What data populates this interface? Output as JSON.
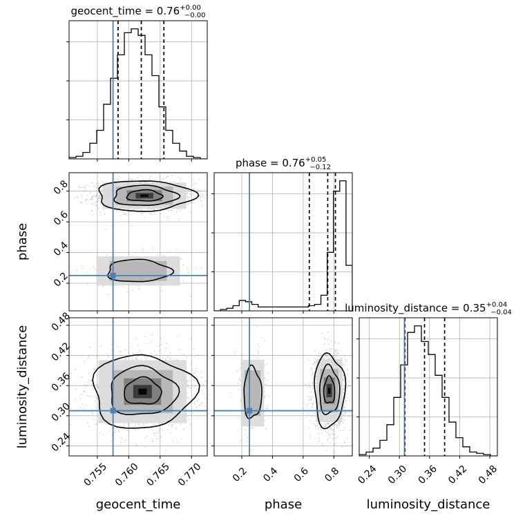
{
  "chart_data": {
    "type": "corner",
    "parameters": [
      {
        "name": "geocent_time",
        "label": "geocent_time",
        "range": [
          0.7505,
          0.7725
        ],
        "ticks": [
          0.755,
          0.76,
          0.765,
          0.77
        ],
        "tick_labels": [
          "0.755",
          "0.760",
          "0.765",
          "0.770"
        ],
        "truth": 0.7575,
        "quantiles": [
          0.7583,
          0.762,
          0.7656
        ],
        "title_text": "geocent_time = 0.76",
        "title_plus": "+0.00",
        "title_minus": "−0.00",
        "hist": [
          0.01,
          0.02,
          0.05,
          0.12,
          0.22,
          0.42,
          0.62,
          0.8,
          0.97,
          1.0,
          0.95,
          0.8,
          0.64,
          0.4,
          0.22,
          0.12,
          0.06,
          0.02,
          0.01,
          0.0
        ]
      },
      {
        "name": "phase",
        "label": "phase",
        "range": [
          0.02,
          0.92
        ],
        "ticks": [
          0.2,
          0.4,
          0.6,
          0.8
        ],
        "tick_labels": [
          "0.2",
          "0.4",
          "0.6",
          "0.8"
        ],
        "truth": 0.25,
        "quantiles": [
          0.64,
          0.76,
          0.81
        ],
        "title_text": "phase = 0.76",
        "title_plus": "+0.05",
        "title_minus": "−0.12",
        "hist": [
          0.0,
          0.01,
          0.02,
          0.04,
          0.08,
          0.07,
          0.05,
          0.03,
          0.03,
          0.03,
          0.03,
          0.03,
          0.03,
          0.03,
          0.03,
          0.04,
          0.05,
          0.12,
          0.45,
          0.92,
          1.0,
          0.35
        ]
      },
      {
        "name": "luminosity_distance",
        "label": "luminosity_distance",
        "range": [
          0.22,
          0.495
        ],
        "ticks": [
          0.24,
          0.3,
          0.36,
          0.42,
          0.48
        ],
        "tick_labels": [
          "0.24",
          "0.30",
          "0.36",
          "0.42",
          "0.48"
        ],
        "truth": 0.31,
        "quantiles": [
          0.311,
          0.35,
          0.39
        ],
        "title_text": "luminosity_distance = 0.35",
        "title_plus": "+0.04",
        "title_minus": "−0.04",
        "hist": [
          0.01,
          0.03,
          0.06,
          0.12,
          0.24,
          0.45,
          0.7,
          0.95,
          1.0,
          0.88,
          0.78,
          0.62,
          0.45,
          0.26,
          0.14,
          0.07,
          0.03,
          0.02,
          0.01,
          0.0
        ]
      }
    ],
    "pairs": [
      {
        "x": "geocent_time",
        "y": "phase",
        "modes": [
          {
            "mx": 0.7625,
            "my": 0.77,
            "sx": 0.0035,
            "sy": 0.045,
            "weight": 0.85
          },
          {
            "mx": 0.7615,
            "my": 0.28,
            "sx": 0.0035,
            "sy": 0.05,
            "weight": 0.15
          }
        ],
        "truth": [
          0.7575,
          0.25
        ]
      },
      {
        "x": "geocent_time",
        "y": "luminosity_distance",
        "modes": [
          {
            "mx": 0.7622,
            "my": 0.348,
            "sx": 0.0037,
            "sy": 0.033,
            "weight": 1.0
          }
        ],
        "truth": [
          0.7575,
          0.31
        ]
      },
      {
        "x": "phase",
        "y": "luminosity_distance",
        "modes": [
          {
            "mx": 0.77,
            "my": 0.35,
            "sx": 0.045,
            "sy": 0.033,
            "weight": 0.82
          },
          {
            "mx": 0.27,
            "my": 0.345,
            "sx": 0.04,
            "sy": 0.035,
            "weight": 0.18
          }
        ],
        "truth": [
          0.25,
          0.31
        ]
      }
    ],
    "contour_levels": [
      0.393,
      0.865,
      0.989
    ],
    "grid": true,
    "truth_color": "#4682b4"
  }
}
